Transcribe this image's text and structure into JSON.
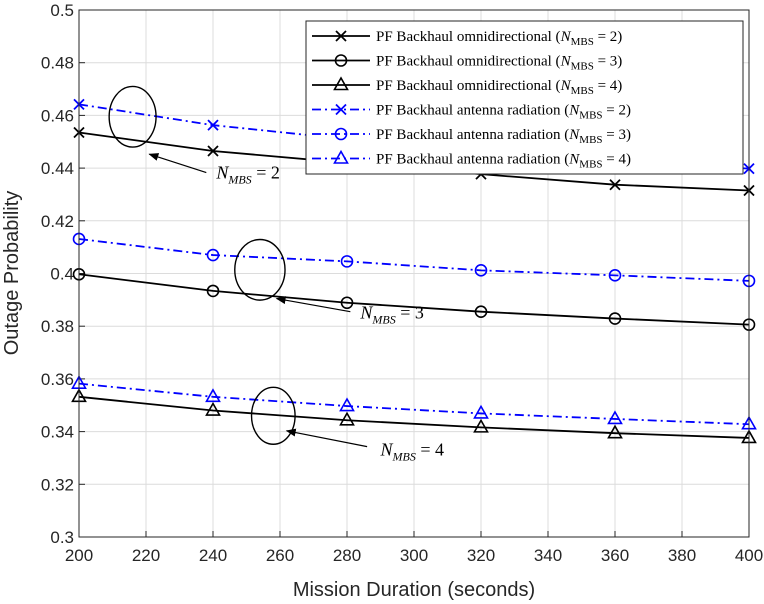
{
  "chart_data": {
    "type": "line",
    "xlabel": "Mission Duration (seconds)",
    "ylabel": "Outage Probability",
    "xlim": [
      200,
      400
    ],
    "ylim": [
      0.3,
      0.5
    ],
    "x_ticks": [
      "200",
      "220",
      "240",
      "260",
      "280",
      "300",
      "320",
      "340",
      "360",
      "380",
      "400"
    ],
    "y_ticks": [
      "0.3",
      "0.32",
      "0.34",
      "0.36",
      "0.38",
      "0.4",
      "0.42",
      "0.44",
      "0.46",
      "0.48",
      "0.5"
    ],
    "grid": true,
    "legend_position": "top-right",
    "series": [
      {
        "name": "PF Backhaul omnidirectional (N_MBS = 2)",
        "name_main": "PF Backhaul omnidirectional (",
        "name_math": "N",
        "name_sub": "MBS",
        "name_tail": " = 2)",
        "color": "#000000",
        "dash": "solid",
        "marker": "x",
        "x": [
          200,
          240,
          280,
          320,
          360,
          400
        ],
        "y": [
          0.4535,
          0.4465,
          0.442,
          0.4377,
          0.4337,
          0.4315
        ]
      },
      {
        "name": "PF Backhaul omnidirectional (N_MBS = 3)",
        "name_main": "PF Backhaul omnidirectional (",
        "name_math": "N",
        "name_sub": "MBS",
        "name_tail": " = 3)",
        "color": "#000000",
        "dash": "solid",
        "marker": "circle",
        "x": [
          200,
          240,
          280,
          320,
          360,
          400
        ],
        "y": [
          0.3997,
          0.3934,
          0.3889,
          0.3855,
          0.3829,
          0.3806
        ]
      },
      {
        "name": "PF Backhaul omnidirectional (N_MBS = 4)",
        "name_main": "PF Backhaul omnidirectional (",
        "name_math": "N",
        "name_sub": "MBS",
        "name_tail": " = 4)",
        "color": "#000000",
        "dash": "solid",
        "marker": "triangle",
        "x": [
          200,
          240,
          280,
          320,
          360,
          400
        ],
        "y": [
          0.3532,
          0.348,
          0.3443,
          0.3416,
          0.3394,
          0.3376
        ]
      },
      {
        "name": "PF Backhaul antenna radiation (N_MBS = 2)",
        "name_main": "PF Backhaul antenna radiation (",
        "name_math": "N",
        "name_sub": "MBS",
        "name_tail": " = 2)",
        "color": "#0000FF",
        "dash": "dashdot",
        "marker": "x",
        "x": [
          200,
          240,
          280,
          320,
          360,
          400
        ],
        "y": [
          0.4642,
          0.4563,
          0.451,
          0.4465,
          0.443,
          0.4398
        ]
      },
      {
        "name": "PF Backhaul antenna radiation (N_MBS = 3)",
        "name_main": "PF Backhaul antenna radiation (",
        "name_math": "N",
        "name_sub": "MBS",
        "name_tail": " = 3)",
        "color": "#0000FF",
        "dash": "dashdot",
        "marker": "circle",
        "x": [
          200,
          240,
          280,
          320,
          360,
          400
        ],
        "y": [
          0.4131,
          0.407,
          0.4046,
          0.4012,
          0.3993,
          0.3972
        ]
      },
      {
        "name": "PF Backhaul antenna radiation (N_MBS = 4)",
        "name_main": "PF Backhaul antenna radiation (",
        "name_math": "N",
        "name_sub": "MBS",
        "name_tail": " = 4)",
        "color": "#0000FF",
        "dash": "dashdot",
        "marker": "triangle",
        "x": [
          200,
          240,
          280,
          320,
          360,
          400
        ],
        "y": [
          0.3582,
          0.3532,
          0.3497,
          0.3469,
          0.3448,
          0.3428
        ]
      }
    ],
    "annotations": [
      {
        "text": "N_MBS = 2",
        "math": "N",
        "sub": "MBS",
        "tail": " = 2",
        "ellipse_center": [
          216,
          0.4595
        ],
        "ellipse_rx_data": 7,
        "ellipse_ry_data": 0.0115,
        "arrow_from": [
          238,
          0.4383
        ],
        "arrow_to": [
          221,
          0.4453
        ],
        "text_at": [
          241,
          0.436
        ]
      },
      {
        "text": "N_MBS = 3",
        "math": "N",
        "sub": "MBS",
        "tail": " = 3",
        "ellipse_center": [
          254,
          0.4014
        ],
        "ellipse_rx_data": 7.5,
        "ellipse_ry_data": 0.0115,
        "arrow_from": [
          281,
          0.3855
        ],
        "arrow_to": [
          259,
          0.3905
        ],
        "text_at": [
          284,
          0.383
        ]
      },
      {
        "text": "N_MBS = 4",
        "math": "N",
        "sub": "MBS",
        "tail": " = 4",
        "ellipse_center": [
          258,
          0.346
        ],
        "ellipse_rx_data": 6.5,
        "ellipse_ry_data": 0.0108,
        "arrow_from": [
          286,
          0.3343
        ],
        "arrow_to": [
          262,
          0.3403
        ],
        "text_at": [
          290,
          0.331
        ]
      }
    ]
  }
}
